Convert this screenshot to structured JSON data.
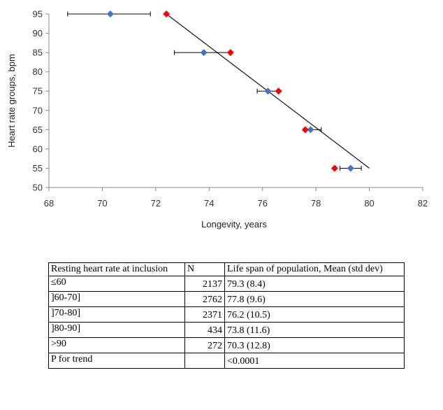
{
  "chart_data": {
    "type": "scatter",
    "xlabel": "Longevity, years",
    "ylabel": "Heart rate groups, bpm",
    "xlim": [
      68,
      82
    ],
    "ylim": [
      50,
      95
    ],
    "xticks": [
      68,
      70,
      72,
      74,
      76,
      78,
      80,
      82
    ],
    "yticks": [
      50,
      55,
      60,
      65,
      70,
      75,
      80,
      85,
      90,
      95
    ],
    "grid": false,
    "series": [
      {
        "color": "#4472c4",
        "marker": "diamond",
        "points": [
          {
            "x": 70.3,
            "y": 95,
            "xerr_low": 68.7,
            "xerr_high": 71.8
          },
          {
            "x": 73.8,
            "y": 85,
            "xerr_low": 72.7,
            "xerr_high": 74.8
          },
          {
            "x": 76.2,
            "y": 75,
            "xerr_low": 75.8,
            "xerr_high": 76.6
          },
          {
            "x": 77.8,
            "y": 65,
            "xerr_low": 77.6,
            "xerr_high": 78.2
          },
          {
            "x": 79.3,
            "y": 55,
            "xerr_low": 78.9,
            "xerr_high": 79.7
          }
        ]
      },
      {
        "color": "#ff0000",
        "marker": "diamond",
        "points": [
          {
            "x": 72.4,
            "y": 95
          },
          {
            "x": 74.8,
            "y": 85
          },
          {
            "x": 76.6,
            "y": 75
          },
          {
            "x": 77.6,
            "y": 65
          },
          {
            "x": 78.7,
            "y": 55
          }
        ]
      }
    ],
    "trendline": {
      "x1": 72.4,
      "y1": 95,
      "x2": 80.0,
      "y2": 55,
      "color": "#222222"
    }
  },
  "table": {
    "headers": [
      "Resting heart rate at inclusion",
      "N",
      "Life span of population, Mean (std dev)"
    ],
    "rows": [
      [
        "≤60",
        "2137",
        "79.3 (8.4)"
      ],
      [
        "]60-70]",
        "2762",
        "77.8 (9.6)"
      ],
      [
        "]70-80]",
        "2371",
        "76.2 (10.5)"
      ],
      [
        "]80-90]",
        "434",
        "73.8 (11.6)"
      ],
      [
        ">90",
        "272",
        "70.3 (12.8)"
      ],
      [
        "P for trend",
        "",
        "<0.0001"
      ]
    ]
  }
}
